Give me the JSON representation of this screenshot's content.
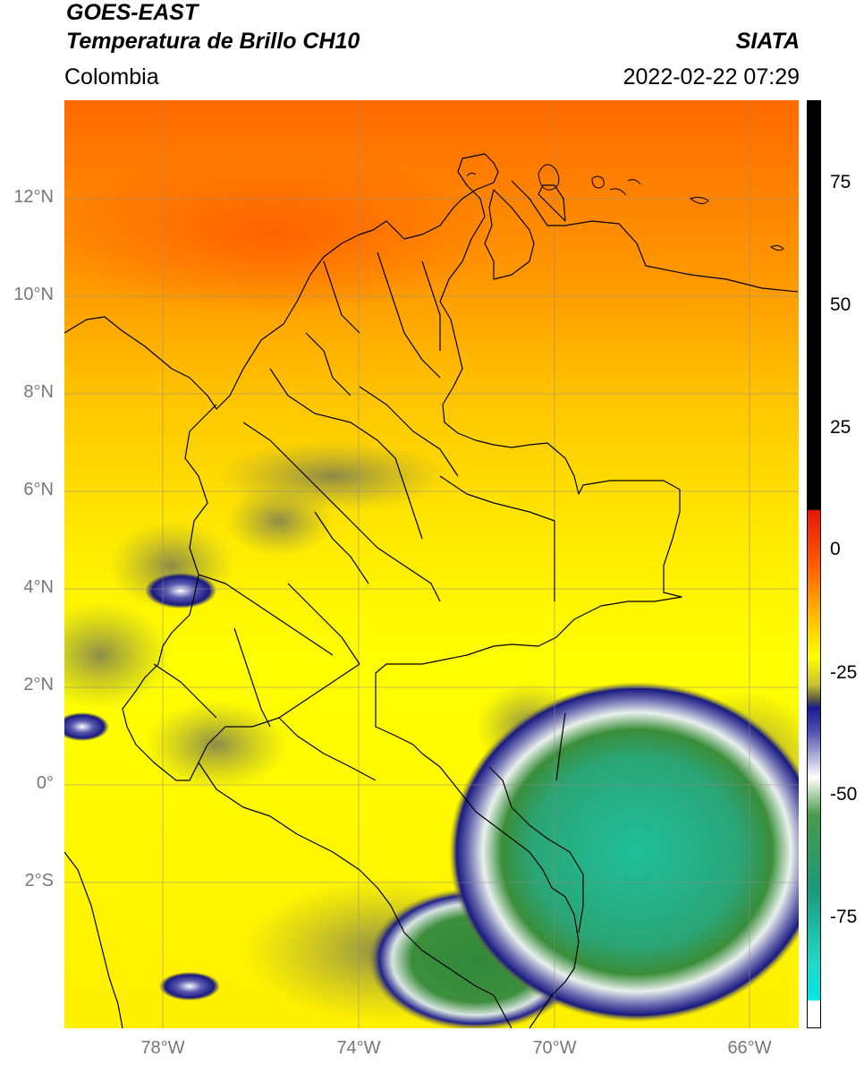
{
  "header": {
    "title_line1": "GOES-EAST",
    "title_line2": "Temperatura de Brillo CH10",
    "region": "Colombia",
    "source": "SIATA",
    "timestamp": "2022-02-22 07:29"
  },
  "map": {
    "lat_labels": [
      "12°N",
      "10°N",
      "8°N",
      "6°N",
      "4°N",
      "2°N",
      "0°",
      "2°S"
    ],
    "lon_labels": [
      "78°W",
      "74°W",
      "70°W",
      "66°W"
    ],
    "extent": {
      "lon_min": -80,
      "lon_max": -65,
      "lat_min": -5,
      "lat_max": 14
    }
  },
  "colorbar": {
    "ticks": [
      "75",
      "50",
      "25",
      "0",
      "-25",
      "-50",
      "-75"
    ],
    "range": [
      -95,
      90
    ],
    "colors": {
      "black": "#000000",
      "red": "#e8160a",
      "orange": "#ff8a00",
      "yellow": "#ffff00",
      "olive": "#707030",
      "navy": "#141480",
      "white": "#ffffff",
      "green": "#2e8b2e",
      "teal": "#1ebe9a",
      "cyan": "#00e8e8"
    }
  }
}
